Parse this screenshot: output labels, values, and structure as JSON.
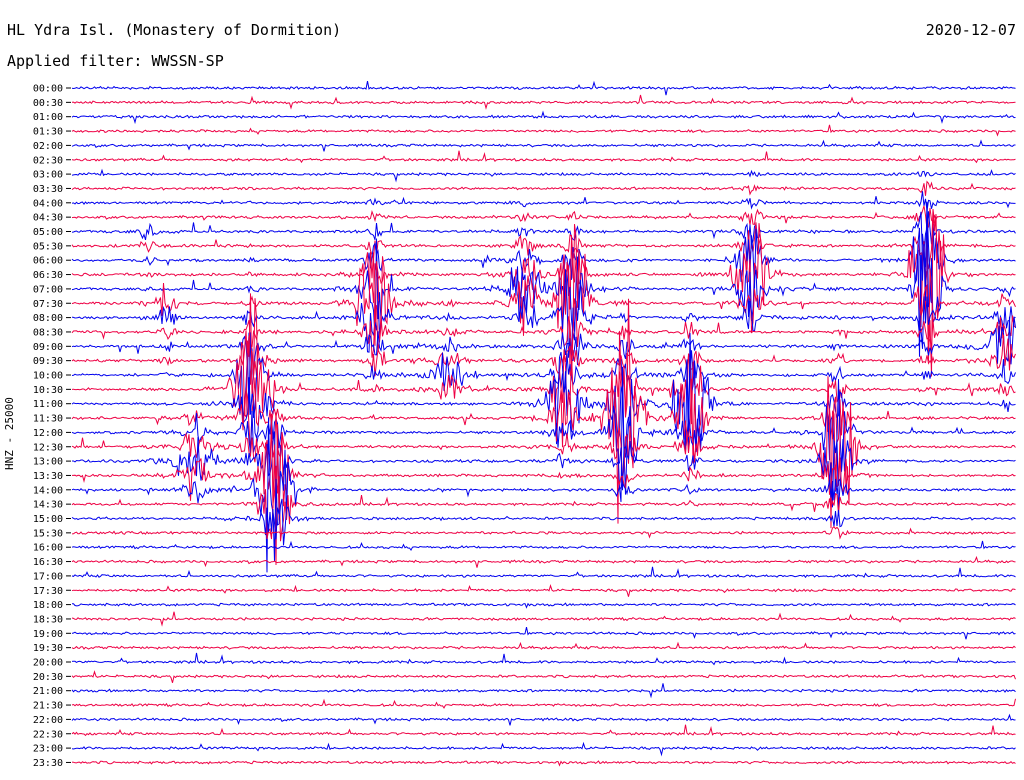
{
  "header": {
    "station": "HL Ydra Isl. (Monastery of Dormition)",
    "date": "2020-12-07",
    "filter": "Applied filter: WWSSN-SP"
  },
  "chart_data": {
    "type": "line",
    "title": "HL Ydra Isl. (Monastery of Dormition)",
    "subtitle": "Applied filter: WWSSN-SP",
    "date": "2020-12-07",
    "ylabel": "HNZ - 25000",
    "xlabel": "",
    "y_tick_labels": [
      "00:00",
      "00:30",
      "01:00",
      "01:30",
      "02:00",
      "02:30",
      "03:00",
      "03:30",
      "04:00",
      "04:30",
      "05:00",
      "05:30",
      "06:00",
      "06:30",
      "07:00",
      "07:30",
      "08:00",
      "08:30",
      "09:00",
      "09:30",
      "10:00",
      "10:30",
      "11:00",
      "11:30",
      "12:00",
      "12:30",
      "13:00",
      "13:30",
      "14:00",
      "14:30",
      "15:00",
      "15:30",
      "16:00",
      "16:30",
      "17:00",
      "17:30",
      "18:00",
      "18:30",
      "19:00",
      "19:30",
      "20:00",
      "20:30",
      "21:00",
      "21:30",
      "22:00",
      "22:30",
      "23:00",
      "23:30"
    ],
    "trace_colors": [
      "#0000ee",
      "#ee0044"
    ],
    "events": [
      {
        "x": 0.08,
        "start_row": 10,
        "end_row": 26,
        "peak": 6,
        "amp": 160
      },
      {
        "x": 0.1,
        "start_row": 15,
        "end_row": 24,
        "peak": 12,
        "amp": 210
      },
      {
        "x": 0.13,
        "start_row": 23,
        "end_row": 28,
        "peak": 26,
        "amp": 120
      },
      {
        "x": 0.19,
        "start_row": 5,
        "end_row": 27,
        "peak": 21,
        "amp": 260
      },
      {
        "x": 0.215,
        "start_row": 9,
        "end_row": 30,
        "peak": 28,
        "amp": 300
      },
      {
        "x": 0.32,
        "start_row": 8,
        "end_row": 23,
        "peak": 15,
        "amp": 180
      },
      {
        "x": 0.4,
        "start_row": 15,
        "end_row": 21,
        "peak": 20,
        "amp": 60
      },
      {
        "x": 0.48,
        "start_row": 8,
        "end_row": 16,
        "peak": 14,
        "amp": 120
      },
      {
        "x": 0.52,
        "start_row": 16,
        "end_row": 27,
        "peak": 22,
        "amp": 140
      },
      {
        "x": 0.53,
        "start_row": 9,
        "end_row": 24,
        "peak": 15,
        "amp": 230
      },
      {
        "x": 0.585,
        "start_row": 10,
        "end_row": 28,
        "peak": 23,
        "amp": 280
      },
      {
        "x": 0.655,
        "start_row": 16,
        "end_row": 29,
        "peak": 22,
        "amp": 220
      },
      {
        "x": 0.72,
        "start_row": 6,
        "end_row": 16,
        "peak": 13,
        "amp": 170
      },
      {
        "x": 0.81,
        "start_row": 14,
        "end_row": 31,
        "peak": 25,
        "amp": 240
      },
      {
        "x": 0.905,
        "start_row": 6,
        "end_row": 24,
        "peak": 13,
        "amp": 320
      },
      {
        "x": 0.99,
        "start_row": 14,
        "end_row": 22,
        "peak": 18,
        "amp": 90
      }
    ]
  }
}
